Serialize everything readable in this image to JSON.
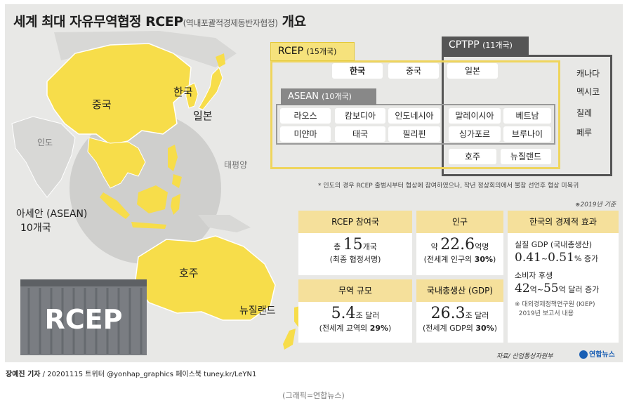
{
  "title": {
    "main": "세계 최대 자유무역협정 RCEP",
    "sub": "(역내포괄적경제동반자협정)",
    "tail": " 개요"
  },
  "map_labels": {
    "china": "중국",
    "korea": "한국",
    "japan": "일본",
    "india": "인도",
    "pacific": "태평양",
    "asean_label_1": "아세안 (ASEAN)",
    "asean_label_2": "10개국",
    "australia": "호주",
    "newzealand": "뉴질랜드",
    "container": "RCEP"
  },
  "rcep": {
    "label": "RCEP",
    "count": "(15개국)"
  },
  "cptpp": {
    "label": "CPTPP",
    "count": "(11개국)"
  },
  "asean": {
    "label": "ASEAN",
    "count": "(10개국)"
  },
  "top_countries": [
    "한국",
    "중국",
    "일본"
  ],
  "asean_countries": [
    "라오스",
    "캄보디아",
    "인도네시아",
    "말레이시아",
    "베트남",
    "미얀마",
    "태국",
    "필리핀",
    "싱가포르",
    "브루나이"
  ],
  "oceania": [
    "호주",
    "뉴질랜드"
  ],
  "cptpp_only": [
    "캐나다",
    "멕시코",
    "칠레",
    "페루"
  ],
  "note": "* 인도의 경우 RCEP 출범시부터 협상에 참여하였으나, 작년 정상회의에서 불참 선언후 협상 미복귀",
  "as_of": "※2019년 기준",
  "cards": {
    "members": {
      "header": "RCEP 참여국",
      "prefix": "총 ",
      "num": "15",
      "unit": "개국",
      "detail": "(최종 협정서명)"
    },
    "population": {
      "header": "인구",
      "prefix": "약 ",
      "num": "22.6",
      "unit": "억명",
      "detail_pre": "(전세계 인구의 ",
      "detail_bold": "30%",
      "detail_post": ")"
    },
    "trade": {
      "header": "무역 규모",
      "num": "5.4",
      "unit": "조 달러",
      "detail_pre": "(전세계 교역의 ",
      "detail_bold": "29%",
      "detail_post": ")"
    },
    "gdp": {
      "header": "국내총생산 (GDP)",
      "num": "26.3",
      "unit": "조 달러",
      "detail_pre": "(전세계 GDP의 ",
      "detail_bold": "30%",
      "detail_post": ")"
    },
    "economy": {
      "header": "한국의 경제적 효과",
      "line1_label": "실질 GDP (국내총생산)",
      "line1_a": "0.41",
      "line1_sep": "~",
      "line1_b": "0.51",
      "line1_unit": "% 증가",
      "line2_label": "소비자 후생",
      "line2_a": "42",
      "line2_a_unit": "억~",
      "line2_b": "55",
      "line2_unit": "억 달러 증가",
      "note1": "※ 대외경제정책연구원 (KIEP)",
      "note2": "2019년 보고서 내용"
    }
  },
  "source": "자료/ 산업통상자원부",
  "logo": "연합뉴스",
  "byline": {
    "author": "장예진 기자",
    "rest": " / 20201115 트위터 @yonhap_graphics  페이스북 tuney.kr/LeYN1"
  },
  "caption": "(그래픽=연합뉴스)",
  "colors": {
    "rcep_yellow": "#f6e27c",
    "cptpp_gray": "#555555",
    "background": "#e8e8e6",
    "card_header": "#f5e09b"
  }
}
